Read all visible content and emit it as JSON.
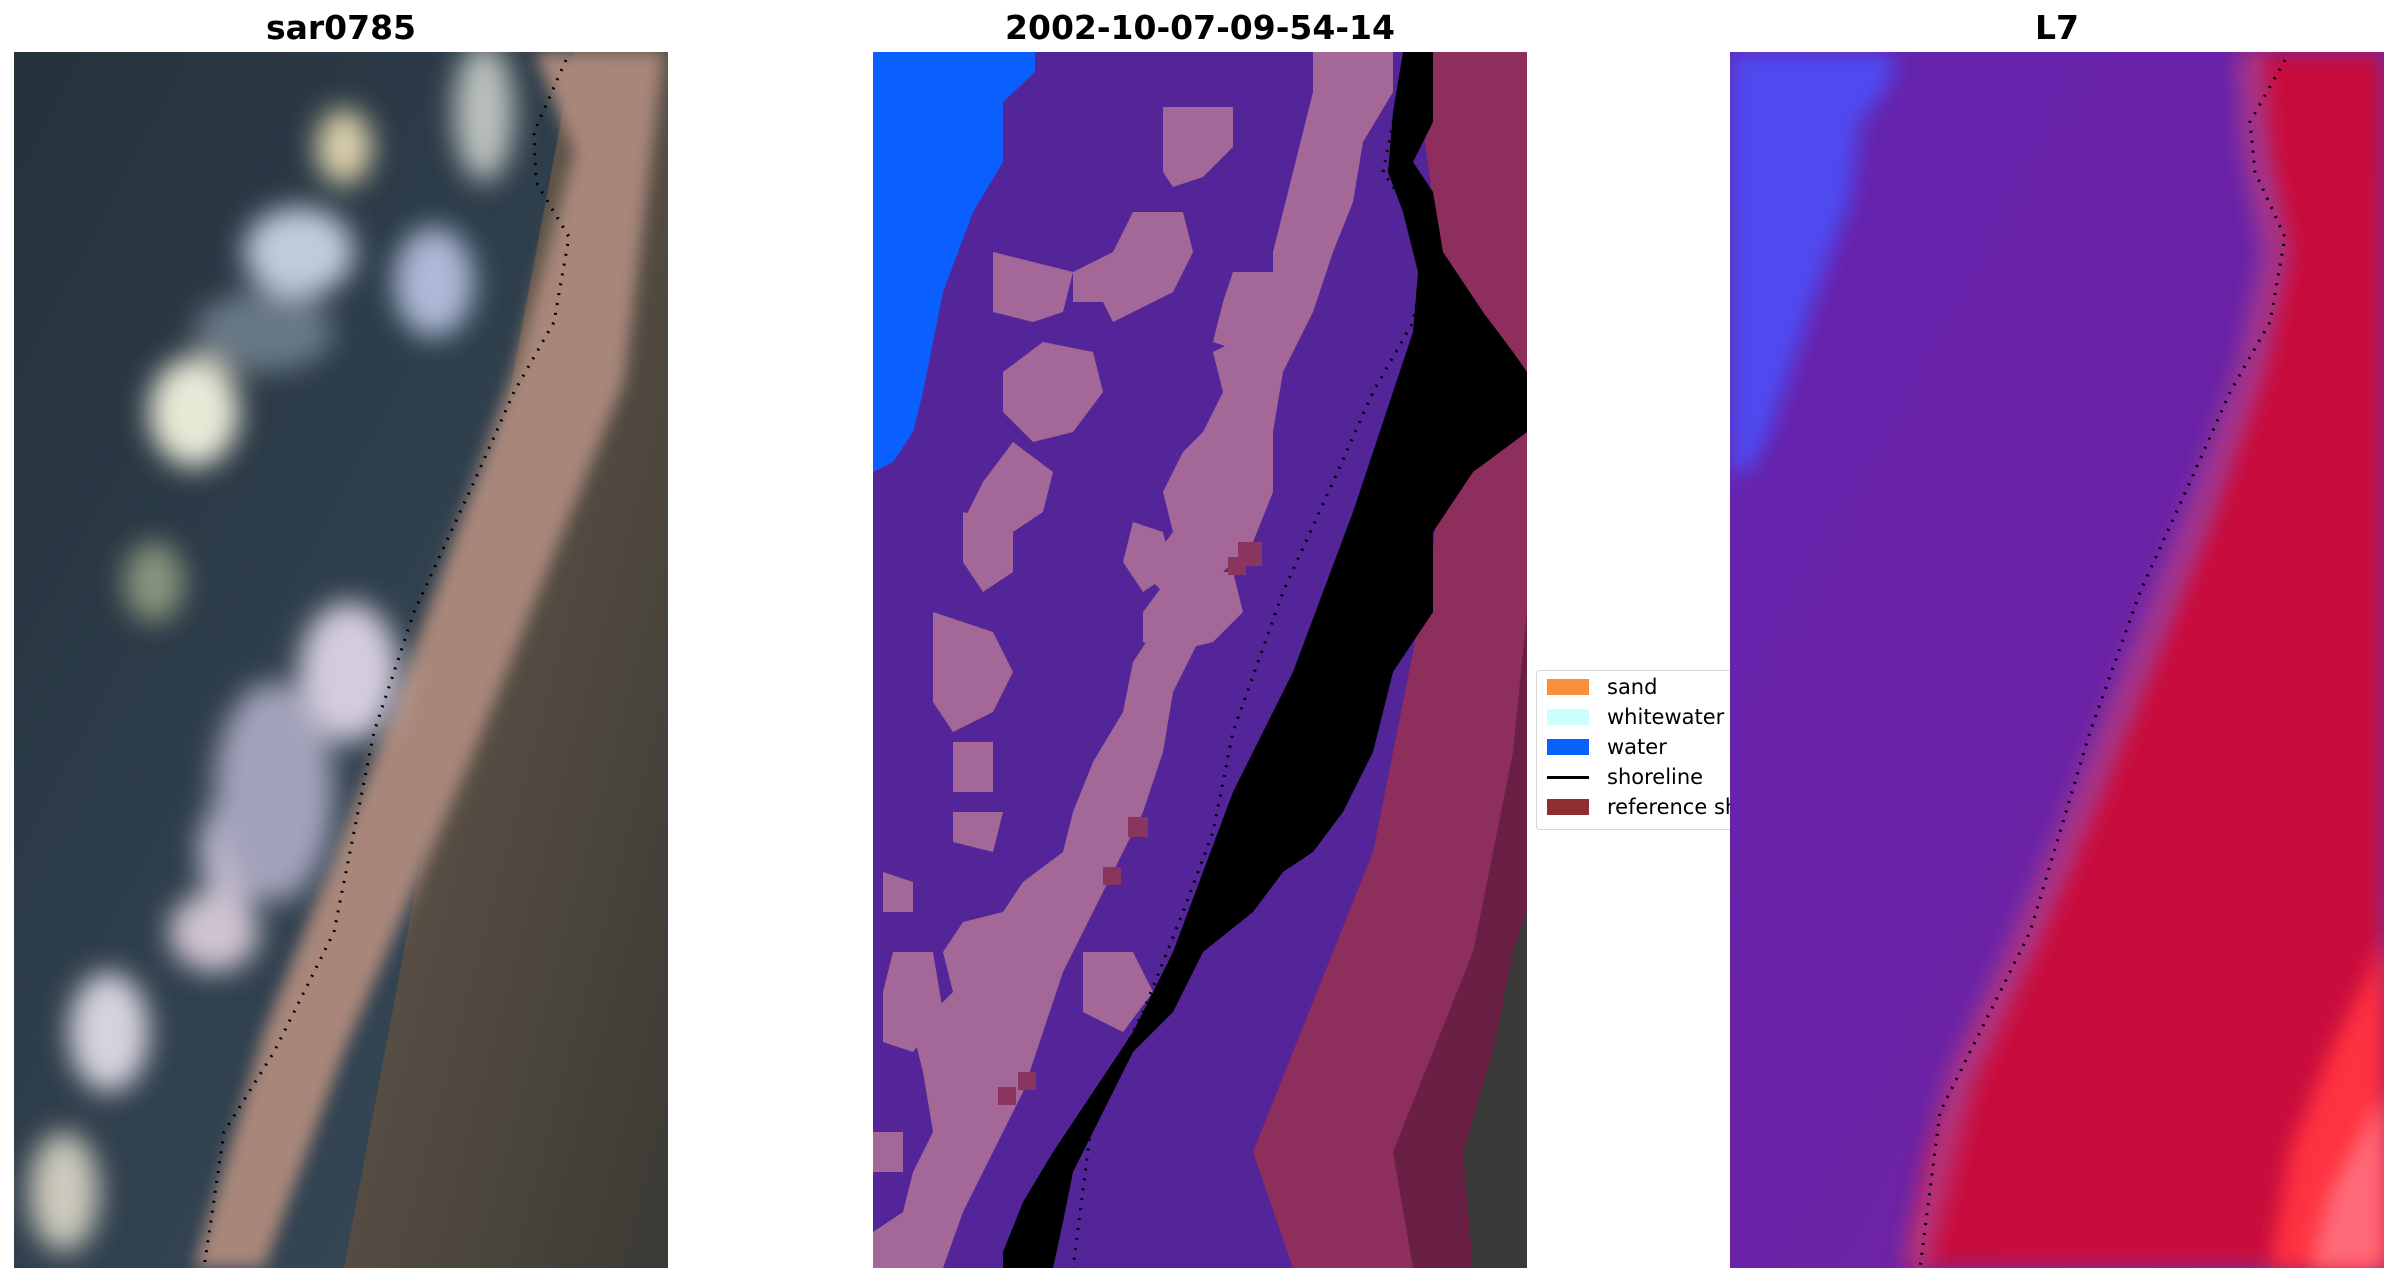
{
  "panels": [
    {
      "title": "sar0785",
      "content": "natural-color satellite image of coastline"
    },
    {
      "title": "2002-10-07-09-54-14",
      "content": "classified image overlay"
    },
    {
      "title": "L7",
      "content": "false-color index image"
    }
  ],
  "legend": {
    "items": [
      {
        "label": "sand",
        "color": "#f88f3c",
        "kind": "patch"
      },
      {
        "label": "whitewater",
        "color": "#ccffff",
        "kind": "patch"
      },
      {
        "label": "water",
        "color": "#0a5fff",
        "kind": "patch"
      },
      {
        "label": "shoreline",
        "color": "#000000",
        "kind": "line"
      },
      {
        "label": "reference sh",
        "color": "#8e2e33",
        "kind": "patch"
      }
    ]
  },
  "colors": {
    "sea_dark": "#2c3b46",
    "beach_tan": "#a8877a",
    "land_dark": "#3c3a35",
    "class_sand_overlay": "#b33d4c",
    "class_whitewater_overlay": "#a36897",
    "class_water_overlay": "#542598",
    "class_water": "#0a5fff",
    "index_blue": "#5048f0",
    "index_purple": "#6a22a6",
    "index_red": "#c80c3c"
  }
}
